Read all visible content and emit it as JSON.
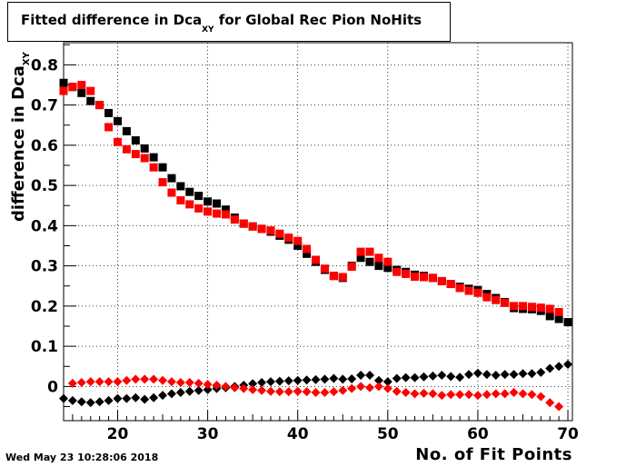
{
  "chart_data": {
    "type": "scatter",
    "title": {
      "main": "Fitted difference in Dca",
      "sub": "XY",
      "rest": " for Global Rec Pion NoHits"
    },
    "xlabel": "No. of Fit Points",
    "ylabel": {
      "main": "difference in Dca",
      "sub": "XY"
    },
    "xlim": [
      14,
      70.5
    ],
    "ylim": [
      -0.085,
      0.855
    ],
    "xticks": [
      20,
      30,
      40,
      50,
      60,
      70
    ],
    "yticks": [
      0,
      0.1,
      0.2,
      0.3,
      0.4,
      0.5,
      0.6,
      0.7,
      0.8
    ],
    "grid": true,
    "series": [
      {
        "color": "#000000",
        "marker": "square",
        "x": [
          14,
          15,
          16,
          17,
          18,
          19,
          20,
          21,
          22,
          23,
          24,
          25,
          26,
          27,
          28,
          29,
          30,
          31,
          32,
          33,
          34,
          35,
          36,
          37,
          38,
          39,
          40,
          41,
          42,
          43,
          44,
          45,
          46,
          47,
          48,
          49,
          50,
          51,
          52,
          53,
          54,
          55,
          56,
          57,
          58,
          59,
          60,
          61,
          62,
          63,
          64,
          65,
          66,
          67,
          68,
          69,
          70
        ],
        "y": [
          0.755,
          0.745,
          0.73,
          0.71,
          0.7,
          0.68,
          0.66,
          0.635,
          0.612,
          0.592,
          0.57,
          0.545,
          0.518,
          0.498,
          0.484,
          0.474,
          0.46,
          0.455,
          0.44,
          0.42,
          0.405,
          0.398,
          0.392,
          0.385,
          0.375,
          0.365,
          0.35,
          0.33,
          0.31,
          0.29,
          0.275,
          0.27,
          0.3,
          0.32,
          0.31,
          0.3,
          0.295,
          0.29,
          0.285,
          0.278,
          0.275,
          0.27,
          0.262,
          0.255,
          0.248,
          0.243,
          0.24,
          0.23,
          0.22,
          0.21,
          0.195,
          0.193,
          0.192,
          0.188,
          0.175,
          0.168,
          0.16
        ]
      },
      {
        "color": "#ff0000",
        "marker": "square",
        "x": [
          14,
          15,
          16,
          17,
          18,
          19,
          20,
          21,
          22,
          23,
          24,
          25,
          26,
          27,
          28,
          29,
          30,
          31,
          32,
          33,
          34,
          35,
          36,
          37,
          38,
          39,
          40,
          41,
          42,
          43,
          44,
          45,
          46,
          47,
          48,
          49,
          50,
          51,
          52,
          53,
          54,
          55,
          56,
          57,
          58,
          59,
          60,
          61,
          62,
          63,
          64,
          65,
          66,
          67,
          68,
          69
        ],
        "y": [
          0.735,
          0.745,
          0.75,
          0.735,
          0.7,
          0.645,
          0.608,
          0.59,
          0.578,
          0.568,
          0.545,
          0.508,
          0.482,
          0.463,
          0.453,
          0.443,
          0.435,
          0.43,
          0.428,
          0.415,
          0.405,
          0.398,
          0.392,
          0.388,
          0.38,
          0.37,
          0.362,
          0.342,
          0.315,
          0.293,
          0.275,
          0.272,
          0.298,
          0.335,
          0.335,
          0.32,
          0.31,
          0.285,
          0.28,
          0.273,
          0.272,
          0.27,
          0.262,
          0.255,
          0.245,
          0.238,
          0.233,
          0.222,
          0.215,
          0.208,
          0.2,
          0.2,
          0.198,
          0.196,
          0.193,
          0.185
        ]
      },
      {
        "color": "#000000",
        "marker": "diamond",
        "x": [
          14,
          15,
          16,
          17,
          18,
          19,
          20,
          21,
          22,
          23,
          24,
          25,
          26,
          27,
          28,
          29,
          30,
          31,
          32,
          33,
          34,
          35,
          36,
          37,
          38,
          39,
          40,
          41,
          42,
          43,
          44,
          45,
          46,
          47,
          48,
          49,
          50,
          51,
          52,
          53,
          54,
          55,
          56,
          57,
          58,
          59,
          60,
          61,
          62,
          63,
          64,
          65,
          66,
          67,
          68,
          69,
          70
        ],
        "y": [
          -0.03,
          -0.035,
          -0.038,
          -0.04,
          -0.038,
          -0.035,
          -0.03,
          -0.03,
          -0.028,
          -0.032,
          -0.028,
          -0.022,
          -0.018,
          -0.015,
          -0.012,
          -0.01,
          -0.008,
          -0.005,
          -0.003,
          0.0,
          0.003,
          0.007,
          0.01,
          0.012,
          0.013,
          0.014,
          0.015,
          0.016,
          0.017,
          0.018,
          0.02,
          0.018,
          0.019,
          0.028,
          0.028,
          0.015,
          0.012,
          0.02,
          0.022,
          0.022,
          0.024,
          0.026,
          0.028,
          0.025,
          0.023,
          0.03,
          0.033,
          0.03,
          0.028,
          0.03,
          0.03,
          0.032,
          0.032,
          0.035,
          0.045,
          0.05,
          0.055
        ]
      },
      {
        "color": "#ff0000",
        "marker": "diamond",
        "x": [
          15,
          16,
          17,
          18,
          19,
          20,
          21,
          22,
          23,
          24,
          25,
          26,
          27,
          28,
          29,
          30,
          31,
          32,
          33,
          34,
          35,
          36,
          37,
          38,
          39,
          40,
          41,
          42,
          43,
          44,
          45,
          46,
          47,
          48,
          49,
          50,
          51,
          52,
          53,
          54,
          55,
          56,
          57,
          58,
          59,
          60,
          61,
          62,
          63,
          64,
          65,
          66,
          67,
          68,
          69
        ],
        "y": [
          0.008,
          0.01,
          0.012,
          0.012,
          0.012,
          0.012,
          0.015,
          0.018,
          0.018,
          0.018,
          0.015,
          0.012,
          0.01,
          0.01,
          0.008,
          0.005,
          0.003,
          0.0,
          -0.003,
          -0.005,
          -0.008,
          -0.01,
          -0.012,
          -0.013,
          -0.013,
          -0.012,
          -0.013,
          -0.015,
          -0.015,
          -0.013,
          -0.01,
          -0.005,
          0.0,
          -0.003,
          0.0,
          -0.005,
          -0.012,
          -0.015,
          -0.018,
          -0.017,
          -0.018,
          -0.022,
          -0.02,
          -0.02,
          -0.02,
          -0.022,
          -0.02,
          -0.018,
          -0.018,
          -0.015,
          -0.018,
          -0.02,
          -0.025,
          -0.04,
          -0.05
        ]
      }
    ]
  },
  "timestamp": "Wed May 23 10:28:06 2018"
}
